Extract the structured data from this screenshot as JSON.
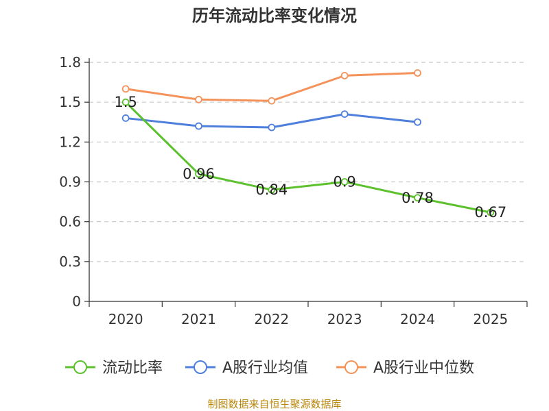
{
  "chart_data": {
    "type": "line",
    "title": "历年流动比率变化情况",
    "categories": [
      "2020",
      "2021",
      "2022",
      "2023",
      "2024",
      "2025"
    ],
    "y_ticks": [
      "0",
      "0.3",
      "0.6",
      "0.9",
      "1.2",
      "1.5",
      "1.8"
    ],
    "ylim": [
      0,
      1.8
    ],
    "grid": true,
    "legend_position": "bottom",
    "series": [
      {
        "name": "流动比率",
        "color": "#5cc12d",
        "values": [
          1.5,
          0.96,
          0.84,
          0.9,
          0.78,
          0.67
        ],
        "labels": [
          "1.5",
          "0.96",
          "0.84",
          "0.9",
          "0.78",
          "0.67"
        ]
      },
      {
        "name": "A股行业均值",
        "color": "#4e7fdc",
        "values": [
          1.38,
          1.32,
          1.31,
          1.41,
          1.35,
          null
        ]
      },
      {
        "name": "A股行业中位数",
        "color": "#f4925a",
        "values": [
          1.6,
          1.52,
          1.51,
          1.7,
          1.72,
          null
        ]
      }
    ],
    "source": "制图数据来自恒生聚源数据库"
  }
}
